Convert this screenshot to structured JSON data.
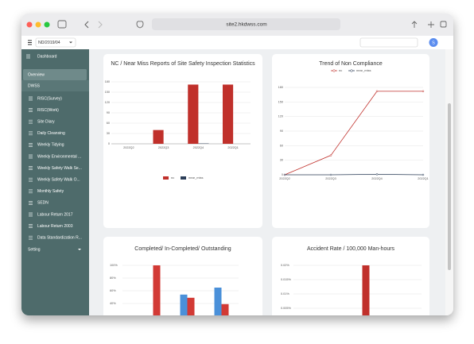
{
  "browser": {
    "url": "site2.hkdwss.com"
  },
  "header": {
    "project": "ND/2019/04",
    "avatar": "S"
  },
  "sidebar": {
    "items": [
      "Dashboard",
      "Overview",
      "DWSS",
      "RISC(Survey)",
      "RISC(Work)",
      "Site Diary",
      "Daily Cleansing",
      "Weekly Tidying",
      "Weekly Environmental ...",
      "Weekly Safety Walk Se...",
      "Weekly Safety Walk O...",
      "Monthly Safety",
      "SEDN",
      "Labour Return 2017",
      "Labour Return 2003",
      "Data Standardization R...",
      "Setting"
    ]
  },
  "charts": [
    {
      "type": "bar",
      "title": "NC / Near Miss Reports of Site Safety Inspection Statistics",
      "categories": [
        "2022Q2",
        "2022Q3",
        "2022Q4",
        "2022Q1"
      ],
      "series": [
        {
          "name": "nc",
          "color": "#c0302b",
          "values": [
            0,
            40,
            172,
            172
          ]
        },
        {
          "name": "near_miss",
          "color": "#2c3e58",
          "values": [
            0,
            0,
            1,
            0
          ]
        }
      ],
      "ylim": [
        0,
        180
      ],
      "yticks": [
        0,
        30,
        60,
        90,
        120,
        150,
        180
      ],
      "legend": "bottom"
    },
    {
      "type": "line",
      "title": "Trend of Non Compliance",
      "categories": [
        "2022Q2",
        "2022Q3",
        "2022Q4",
        "2022Q1"
      ],
      "series": [
        {
          "name": "nc",
          "color": "#c0302b",
          "values": [
            0,
            40,
            172,
            172
          ]
        },
        {
          "name": "near_miss",
          "color": "#2c3e58",
          "values": [
            0,
            0,
            1,
            0
          ]
        }
      ],
      "ylim": [
        0,
        180
      ],
      "yticks": [
        0,
        30,
        60,
        90,
        120,
        150,
        180
      ],
      "legend": "top"
    },
    {
      "type": "bar",
      "title": "Completed/ In-Completed/ Outstanding",
      "series": [
        {
          "color": "#4a90d9",
          "values": [
            0,
            54,
            65
          ]
        },
        {
          "color": "#d23a35",
          "values": [
            100,
            49,
            39
          ]
        }
      ],
      "ylim": [
        0,
        100
      ],
      "yticks": [
        {
          "value": 40,
          "label": "40%"
        },
        {
          "value": 60,
          "label": "60%"
        },
        {
          "value": 80,
          "label": "80%"
        },
        {
          "value": 100,
          "label": "100%"
        }
      ]
    },
    {
      "type": "bar",
      "title": "Accident Rate / 100,000 Man-hours",
      "series": [
        {
          "color": "#c0302b",
          "values": [
            0.02
          ]
        }
      ],
      "ylim": [
        0,
        0.02
      ],
      "yticks": [
        {
          "value": 0.005,
          "label": "0.005%"
        },
        {
          "value": 0.01,
          "label": "0.01%"
        },
        {
          "value": 0.015,
          "label": "0.015%"
        },
        {
          "value": 0.02,
          "label": "0.02%"
        }
      ]
    }
  ]
}
